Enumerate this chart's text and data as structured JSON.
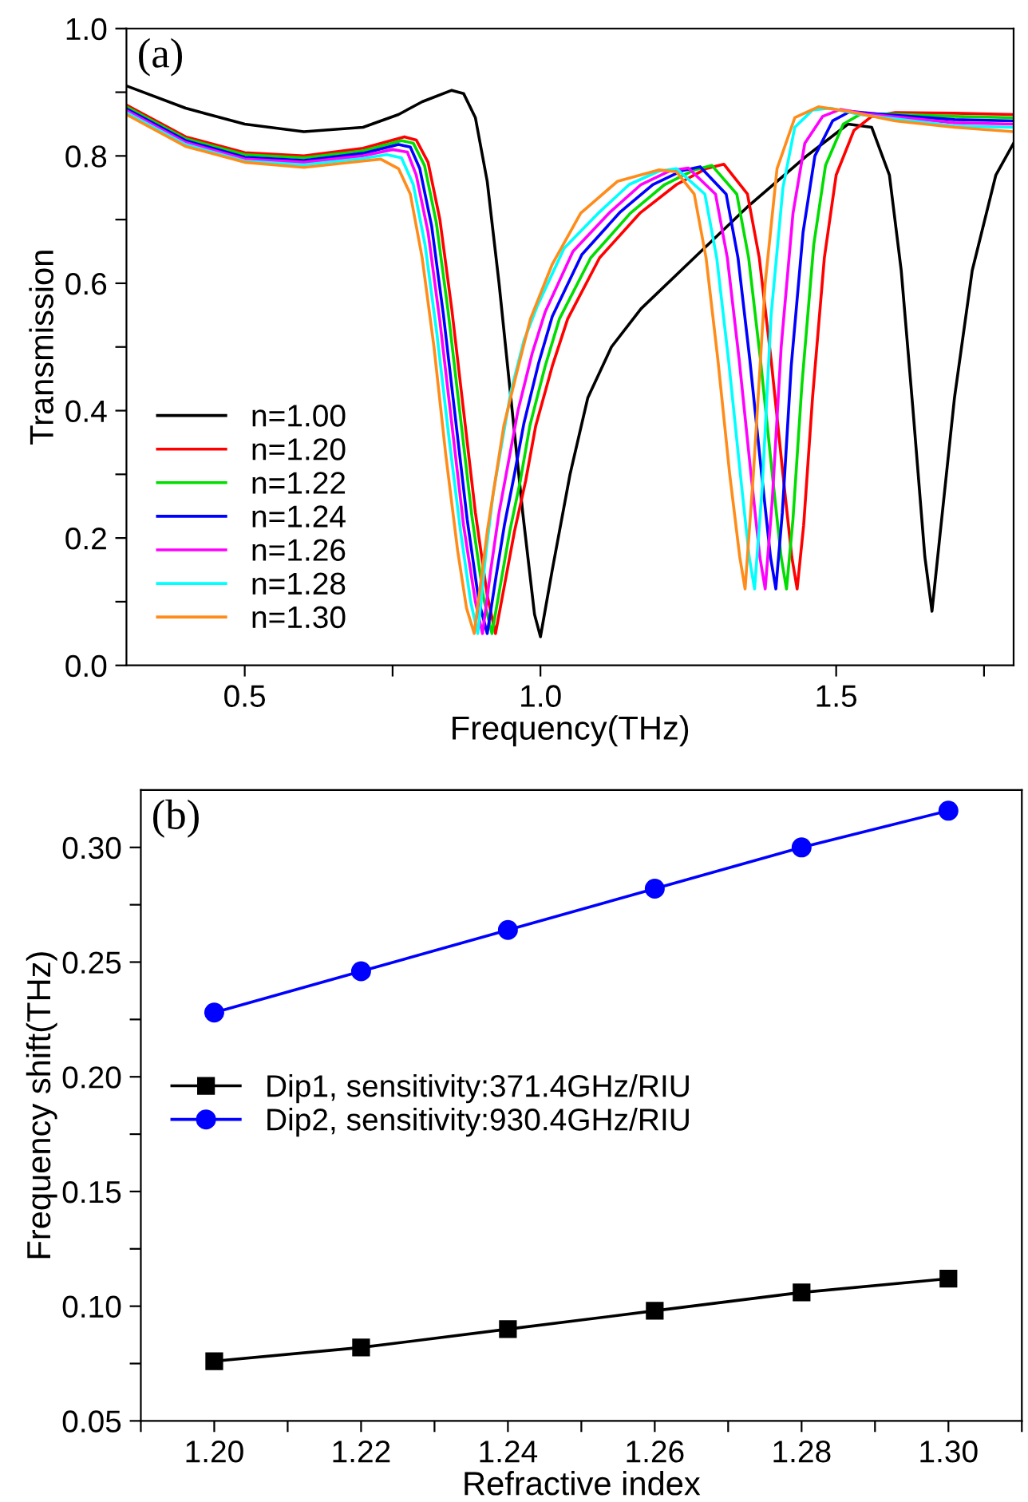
{
  "chart_data": [
    {
      "type": "line",
      "xlabel": "Frequency(THz)",
      "ylabel": "Transmission",
      "annotations": [
        "(a)"
      ],
      "legend": "bottom left",
      "marker": "none",
      "grid": false,
      "xlim": [
        0.3,
        1.8
      ],
      "ylim": [
        0,
        1.0
      ],
      "xticks": [
        0.5,
        {
          "value": 0.75,
          "label": null
        },
        "1.0",
        1.5,
        {
          "value": 1.75,
          "label": null
        }
      ],
      "yticks": [
        "0.0",
        {
          "value": 0.1,
          "label": null
        },
        0.2,
        {
          "value": 0.3,
          "label": null
        },
        0.4,
        {
          "value": 0.5,
          "label": null
        },
        0.6,
        {
          "value": 0.7,
          "label": null
        },
        0.8,
        {
          "value": 0.9,
          "label": null
        },
        "1.0"
      ],
      "series": [
        {
          "name": "n=1.00",
          "color": "#000000",
          "x": [
            0.3,
            0.4,
            0.5,
            0.6,
            0.7,
            0.76,
            0.8,
            0.85,
            0.87,
            0.89,
            0.91,
            0.93,
            0.95,
            0.97,
            0.99,
            1.0,
            1.02,
            1.05,
            1.08,
            1.12,
            1.17,
            1.26,
            1.35,
            1.45,
            1.52,
            1.56,
            1.59,
            1.61,
            1.63,
            1.65,
            1.662,
            1.675,
            1.7,
            1.73,
            1.77,
            1.8
          ],
          "values": [
            0.91,
            0.875,
            0.85,
            0.838,
            0.845,
            0.865,
            0.885,
            0.903,
            0.898,
            0.86,
            0.76,
            0.6,
            0.42,
            0.24,
            0.08,
            0.045,
            0.15,
            0.3,
            0.42,
            0.5,
            0.56,
            0.64,
            0.72,
            0.8,
            0.85,
            0.845,
            0.77,
            0.62,
            0.4,
            0.17,
            0.085,
            0.2,
            0.42,
            0.62,
            0.77,
            0.82
          ]
        },
        {
          "name": "n=1.20",
          "color": "#ff0000",
          "x": [
            0.3,
            0.4,
            0.5,
            0.6,
            0.7,
            0.77,
            0.79,
            0.81,
            0.83,
            0.85,
            0.87,
            0.89,
            0.91,
            0.924,
            0.94,
            0.956,
            0.975,
            0.992,
            1.02,
            1.046,
            1.1,
            1.168,
            1.23,
            1.28,
            1.31,
            1.35,
            1.37,
            1.39,
            1.41,
            1.425,
            1.434,
            1.445,
            1.46,
            1.48,
            1.5,
            1.53,
            1.56,
            1.6,
            1.7,
            1.8
          ],
          "values": [
            0.88,
            0.83,
            0.805,
            0.8,
            0.812,
            0.83,
            0.825,
            0.79,
            0.7,
            0.56,
            0.4,
            0.24,
            0.11,
            0.05,
            0.13,
            0.21,
            0.29,
            0.376,
            0.47,
            0.544,
            0.64,
            0.71,
            0.755,
            0.78,
            0.787,
            0.74,
            0.64,
            0.48,
            0.3,
            0.17,
            0.12,
            0.22,
            0.42,
            0.64,
            0.77,
            0.84,
            0.862,
            0.868,
            0.867,
            0.865
          ]
        },
        {
          "name": "n=1.22",
          "color": "#00dd00",
          "x": [
            0.3,
            0.4,
            0.5,
            0.6,
            0.7,
            0.765,
            0.785,
            0.804,
            0.824,
            0.844,
            0.864,
            0.884,
            0.904,
            0.918,
            0.933,
            0.948,
            0.966,
            0.982,
            1.008,
            1.032,
            1.085,
            1.152,
            1.21,
            1.26,
            1.29,
            1.332,
            1.352,
            1.372,
            1.392,
            1.407,
            1.416,
            1.427,
            1.442,
            1.462,
            1.482,
            1.512,
            1.542,
            1.59,
            1.7,
            1.8
          ],
          "values": [
            0.877,
            0.827,
            0.802,
            0.797,
            0.808,
            0.824,
            0.82,
            0.785,
            0.695,
            0.555,
            0.395,
            0.235,
            0.105,
            0.05,
            0.13,
            0.21,
            0.29,
            0.376,
            0.47,
            0.544,
            0.64,
            0.71,
            0.755,
            0.778,
            0.785,
            0.74,
            0.64,
            0.48,
            0.3,
            0.17,
            0.12,
            0.23,
            0.44,
            0.66,
            0.785,
            0.85,
            0.866,
            0.866,
            0.862,
            0.86
          ]
        },
        {
          "name": "n=1.24",
          "color": "#0000ff",
          "x": [
            0.3,
            0.4,
            0.5,
            0.6,
            0.7,
            0.76,
            0.78,
            0.796,
            0.816,
            0.836,
            0.856,
            0.876,
            0.896,
            0.91,
            0.925,
            0.939,
            0.956,
            0.972,
            0.997,
            1.02,
            1.07,
            1.135,
            1.19,
            1.24,
            1.27,
            1.314,
            1.334,
            1.354,
            1.374,
            1.389,
            1.398,
            1.409,
            1.424,
            1.444,
            1.464,
            1.494,
            1.524,
            1.57,
            1.7,
            1.8
          ],
          "values": [
            0.874,
            0.824,
            0.798,
            0.793,
            0.804,
            0.818,
            0.814,
            0.78,
            0.69,
            0.55,
            0.39,
            0.23,
            0.1,
            0.05,
            0.14,
            0.22,
            0.3,
            0.38,
            0.475,
            0.548,
            0.645,
            0.712,
            0.755,
            0.777,
            0.783,
            0.74,
            0.64,
            0.48,
            0.3,
            0.17,
            0.12,
            0.24,
            0.47,
            0.68,
            0.8,
            0.855,
            0.87,
            0.866,
            0.857,
            0.855
          ]
        },
        {
          "name": "n=1.26",
          "color": "#ff00ff",
          "x": [
            0.3,
            0.4,
            0.5,
            0.6,
            0.7,
            0.75,
            0.775,
            0.79,
            0.81,
            0.83,
            0.85,
            0.87,
            0.89,
            0.902,
            0.916,
            0.93,
            0.946,
            0.962,
            0.986,
            1.008,
            1.055,
            1.118,
            1.17,
            1.22,
            1.25,
            1.296,
            1.316,
            1.336,
            1.356,
            1.371,
            1.38,
            1.392,
            1.407,
            1.427,
            1.447,
            1.477,
            1.507,
            1.55,
            1.7,
            1.8
          ],
          "values": [
            0.871,
            0.821,
            0.795,
            0.79,
            0.8,
            0.81,
            0.806,
            0.77,
            0.68,
            0.54,
            0.38,
            0.22,
            0.1,
            0.05,
            0.15,
            0.24,
            0.32,
            0.4,
            0.49,
            0.555,
            0.65,
            0.712,
            0.755,
            0.777,
            0.781,
            0.74,
            0.64,
            0.48,
            0.3,
            0.17,
            0.12,
            0.26,
            0.5,
            0.71,
            0.82,
            0.862,
            0.873,
            0.866,
            0.852,
            0.85
          ]
        },
        {
          "name": "n=1.28",
          "color": "#00ffff",
          "x": [
            0.3,
            0.4,
            0.5,
            0.6,
            0.7,
            0.74,
            0.765,
            0.785,
            0.805,
            0.825,
            0.845,
            0.865,
            0.882,
            0.894,
            0.907,
            0.92,
            0.935,
            0.95,
            0.972,
            0.995,
            1.04,
            1.1,
            1.15,
            1.2,
            1.23,
            1.278,
            1.298,
            1.318,
            1.338,
            1.353,
            1.362,
            1.375,
            1.39,
            1.41,
            1.43,
            1.46,
            1.49,
            1.54,
            1.7,
            1.8
          ],
          "values": [
            0.868,
            0.818,
            0.792,
            0.786,
            0.796,
            0.802,
            0.797,
            0.755,
            0.66,
            0.52,
            0.36,
            0.21,
            0.1,
            0.05,
            0.17,
            0.27,
            0.35,
            0.43,
            0.51,
            0.565,
            0.655,
            0.712,
            0.755,
            0.776,
            0.78,
            0.74,
            0.64,
            0.48,
            0.3,
            0.17,
            0.12,
            0.28,
            0.55,
            0.75,
            0.845,
            0.872,
            0.875,
            0.865,
            0.847,
            0.845
          ]
        },
        {
          "name": "n=1.30",
          "color": "#ff8c1a",
          "x": [
            0.3,
            0.4,
            0.5,
            0.6,
            0.7,
            0.73,
            0.76,
            0.78,
            0.8,
            0.82,
            0.84,
            0.86,
            0.875,
            0.888,
            0.91,
            0.938,
            0.96,
            0.983,
            1.02,
            1.068,
            1.13,
            1.2,
            1.23,
            1.26,
            1.28,
            1.3,
            1.32,
            1.337,
            1.346,
            1.36,
            1.38,
            1.4,
            1.43,
            1.47,
            1.52,
            1.6,
            1.7,
            1.8
          ],
          "values": [
            0.865,
            0.815,
            0.79,
            0.782,
            0.792,
            0.795,
            0.78,
            0.74,
            0.64,
            0.5,
            0.33,
            0.18,
            0.09,
            0.05,
            0.21,
            0.376,
            0.46,
            0.544,
            0.63,
            0.71,
            0.76,
            0.778,
            0.775,
            0.74,
            0.64,
            0.48,
            0.3,
            0.17,
            0.12,
            0.3,
            0.6,
            0.78,
            0.86,
            0.877,
            0.87,
            0.855,
            0.845,
            0.838
          ]
        }
      ]
    },
    {
      "type": "line",
      "xlabel": "Refractive index",
      "ylabel": "Frequency shift(THz)",
      "annotations": [
        "(b)"
      ],
      "legend": "left",
      "grid": false,
      "line_style": "solid",
      "xlim": [
        1.19,
        1.31
      ],
      "ylim": [
        0.05,
        0.325
      ],
      "x": [
        1.2,
        1.22,
        1.24,
        1.26,
        1.28,
        1.3
      ],
      "xticks": [
        {
          "value": 1.19,
          "label": null
        },
        "1.20",
        {
          "value": 1.21,
          "label": null
        },
        1.22,
        {
          "value": 1.23,
          "label": null
        },
        1.24,
        {
          "value": 1.25,
          "label": null
        },
        1.26,
        {
          "value": 1.27,
          "label": null
        },
        1.28,
        {
          "value": 1.29,
          "label": null
        },
        "1.30",
        {
          "value": 1.31,
          "label": null
        }
      ],
      "yticks": [
        0.05,
        {
          "value": 0.075,
          "label": null
        },
        "0.10",
        {
          "value": 0.125,
          "label": null
        },
        0.15,
        {
          "value": 0.175,
          "label": null
        },
        "0.20",
        {
          "value": 0.225,
          "label": null
        },
        0.25,
        {
          "value": 0.275,
          "label": null
        },
        "0.30"
      ],
      "series": [
        {
          "name": "Dip1, sensitivity:371.4GHz/RIU",
          "color": "#000000",
          "marker": "square",
          "values": [
            0.076,
            0.082,
            0.09,
            0.098,
            0.106,
            0.112
          ]
        },
        {
          "name": "Dip2, sensitivity:930.4GHz/RIU",
          "color": "#0000ff",
          "marker": "circle",
          "values": [
            0.228,
            0.246,
            0.264,
            0.282,
            0.3,
            0.316
          ]
        }
      ]
    }
  ]
}
